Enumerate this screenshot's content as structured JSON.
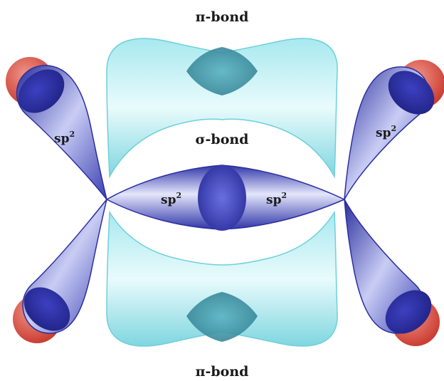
{
  "labels": {
    "pi_bond_top": "π-bond",
    "sigma_bond": "σ-bond",
    "pi_bond_bottom": "π-bond",
    "sp_base": "sp",
    "sp_exp": "2"
  },
  "colors": {
    "sp2_lobe": "#3b3fae",
    "pi_cloud": "#8fe0e8",
    "hydrogen": "#d9463a",
    "overlap": "#3a8d9f"
  }
}
